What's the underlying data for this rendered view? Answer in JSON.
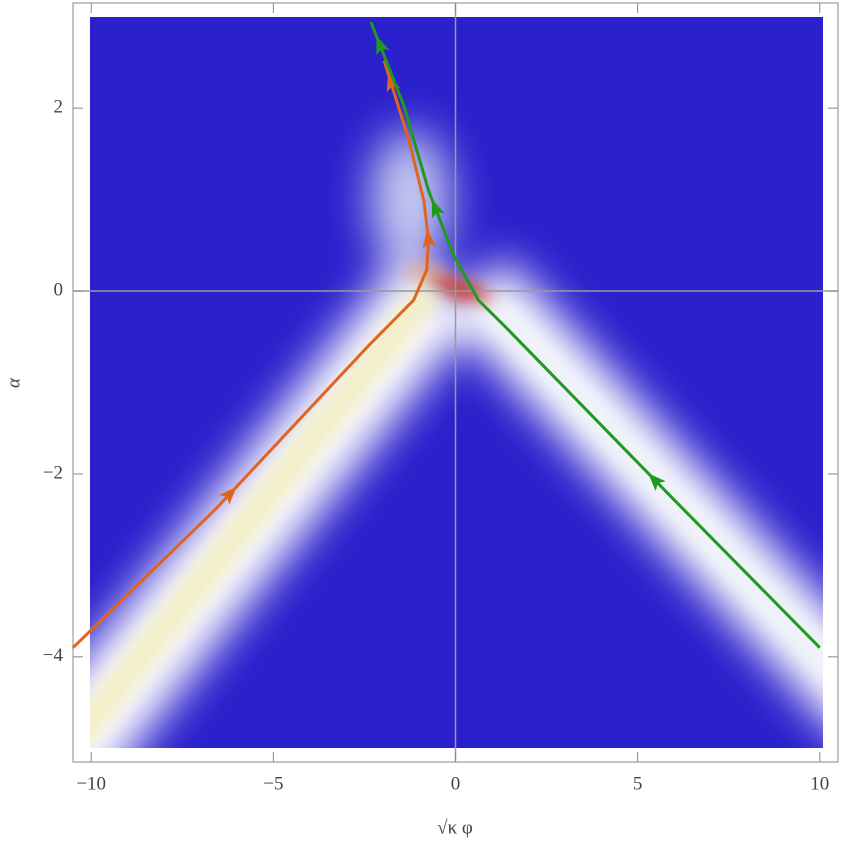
{
  "chart_data": {
    "type": "line",
    "x_label": "√κ φ",
    "y_label": "α",
    "xlim": [
      -10.5,
      10.5
    ],
    "ylim": [
      -5.15,
      3.15
    ],
    "xticks": [
      {
        "value": -10,
        "label": "−10"
      },
      {
        "value": -5,
        "label": "−5"
      },
      0,
      5,
      10
    ],
    "yticks": [
      2,
      0,
      {
        "value": -2,
        "label": "−2"
      },
      {
        "value": -4,
        "label": "−4"
      }
    ],
    "series": [
      {
        "color": "#e0641e",
        "x": [
          -10.5,
          -6.6,
          -2.37,
          -1.15,
          -0.79,
          -0.74,
          -0.87,
          -1.28,
          -1.96
        ],
        "y": [
          -3.9,
          -2.39,
          -0.59,
          -0.1,
          0.23,
          0.56,
          0.99,
          1.65,
          2.52
        ]
      },
      {
        "color": "#1e9a1e",
        "x": [
          10,
          5.87,
          1.39,
          0.63,
          -0.05,
          -0.74,
          -1.42,
          -2.32
        ],
        "y": [
          -3.9,
          -2.23,
          -0.4,
          -0.1,
          0.39,
          1.1,
          2.03,
          2.94
        ]
      }
    ]
  }
}
